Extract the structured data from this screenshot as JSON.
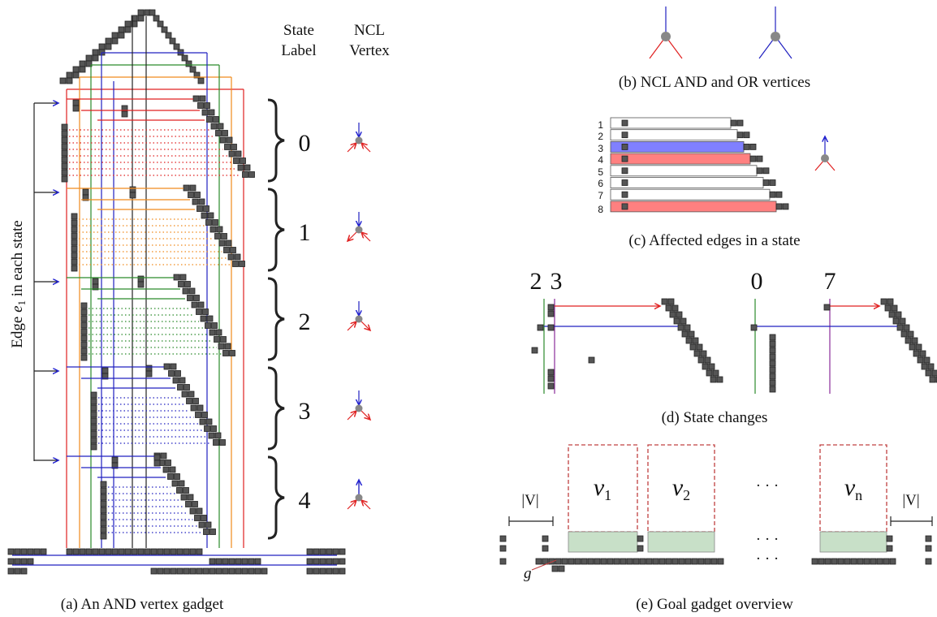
{
  "panel_a": {
    "header": {
      "state": [
        "State",
        "Label"
      ],
      "ncl": [
        "NCL",
        "Vertex"
      ]
    },
    "states": [
      "0",
      "1",
      "2",
      "3",
      "4"
    ],
    "edge_label": {
      "prefix": "Edge ",
      "var": "e",
      "sub": "1",
      "suffix": " in each state"
    },
    "caption": "(a) An AND vertex gadget"
  },
  "panel_b": {
    "caption": "(b) NCL AND and OR vertices"
  },
  "panel_c": {
    "rows": [
      "1",
      "2",
      "3",
      "4",
      "5",
      "6",
      "7",
      "8"
    ],
    "caption": "(c) Affected edges in a state"
  },
  "panel_d": {
    "labels": [
      "2",
      "3",
      "0",
      "7"
    ],
    "caption": "(d) State changes"
  },
  "panel_e": {
    "set_size": [
      "|V|",
      "|V|"
    ],
    "vertices": [
      {
        "var": "v",
        "sub": "1"
      },
      {
        "var": "v",
        "sub": "2"
      },
      {
        "var": "v",
        "sub": "n"
      }
    ],
    "ellipses": [
      "· · ·",
      "· · ·",
      "· · ·"
    ],
    "gadget_label": "g",
    "caption": "(e) Goal gadget overview"
  }
}
